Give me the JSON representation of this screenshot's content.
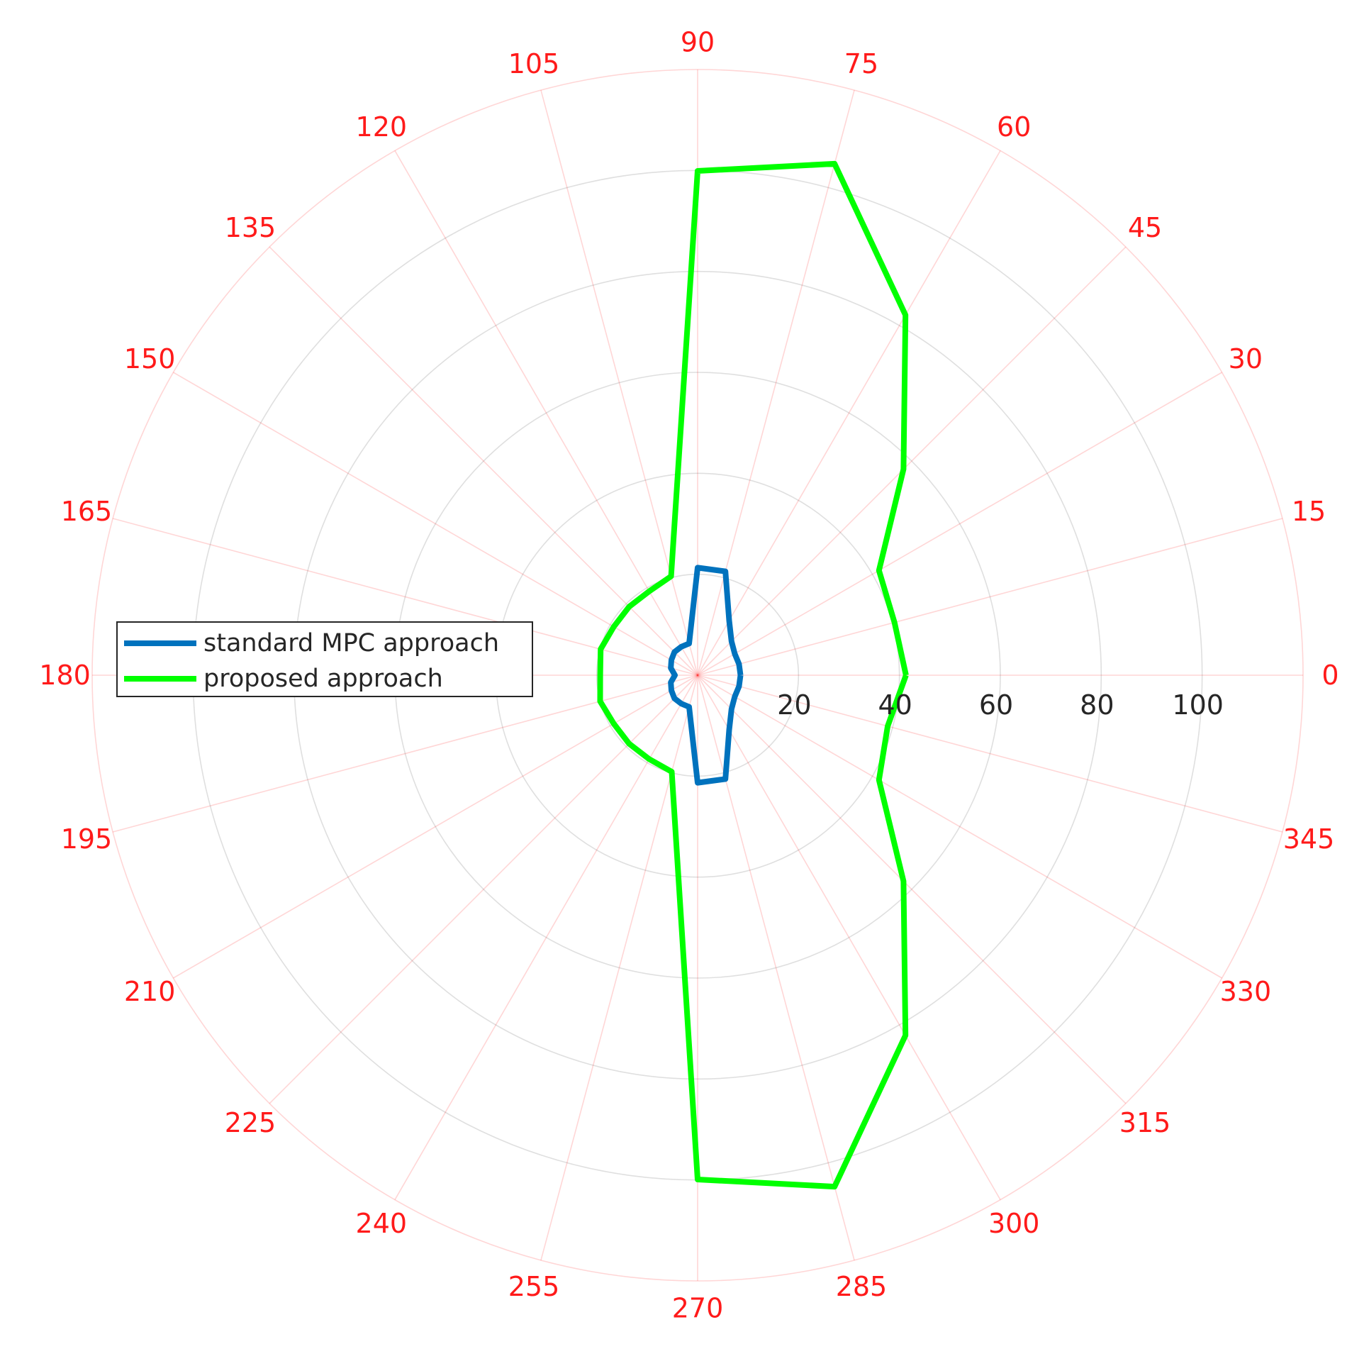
{
  "chart_data": {
    "type": "polar-line",
    "theta_unit": "degrees",
    "theta_ticks": [
      0,
      15,
      30,
      45,
      60,
      75,
      90,
      105,
      120,
      135,
      150,
      165,
      180,
      195,
      210,
      225,
      240,
      255,
      270,
      285,
      300,
      315,
      330,
      345
    ],
    "theta_tick_labels": [
      "0",
      "15",
      "30",
      "45",
      "60",
      "75",
      "90",
      "105",
      "120",
      "135",
      "150",
      "165",
      "180",
      "195",
      "210",
      "225",
      "240",
      "255",
      "270",
      "285",
      "300",
      "315",
      "330",
      "345"
    ],
    "r_ticks": [
      20,
      40,
      60,
      80,
      100
    ],
    "r_tick_labels": [
      "20",
      "40",
      "60",
      "80",
      "100"
    ],
    "rlim": [
      0,
      120
    ],
    "grid": true,
    "angle_color": "#ff1a1a",
    "legend": {
      "placement": "left"
    },
    "series": [
      {
        "name": "standard MPC approach",
        "color": "#0072bd",
        "theta": [
          0,
          15,
          30,
          45,
          60,
          75,
          90,
          105,
          120,
          135,
          150,
          165,
          180,
          195,
          210,
          225,
          240,
          255,
          270,
          285,
          300,
          315,
          330,
          345,
          360
        ],
        "r": [
          8.5,
          8.5,
          8.5,
          9.5,
          12.5,
          21.3,
          21.3,
          6.5,
          6.5,
          6.5,
          6.0,
          5.5,
          4.5,
          5.5,
          6.0,
          6.5,
          6.5,
          6.5,
          21.3,
          21.3,
          12.5,
          9.5,
          8.5,
          8.5,
          8.5
        ]
      },
      {
        "name": "proposed approach",
        "color": "#00ff00",
        "theta": [
          0,
          15,
          30,
          45,
          60,
          75,
          90,
          105,
          120,
          135,
          150,
          165,
          180,
          195,
          210,
          225,
          240,
          255,
          270,
          285,
          300,
          315,
          330,
          345,
          360
        ],
        "r": [
          41.3,
          40.4,
          41.5,
          57.7,
          82.4,
          104.9,
          99.9,
          20.3,
          19.2,
          19.2,
          19.2,
          19.9,
          19.3,
          20.0,
          19.2,
          19.2,
          19.2,
          19.8,
          99.9,
          104.9,
          82.4,
          57.7,
          41.5,
          39.0,
          41.3
        ]
      }
    ]
  }
}
